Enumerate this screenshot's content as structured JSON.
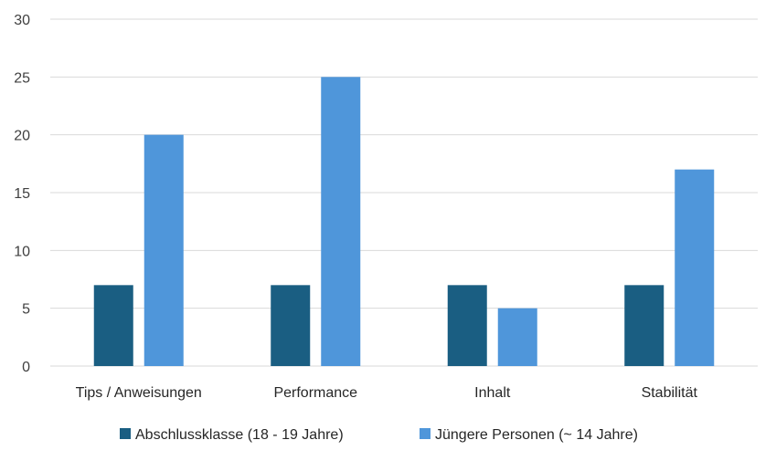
{
  "chart_data": {
    "type": "bar",
    "categories": [
      "Tips / Anweisungen",
      "Performance",
      "Inhalt",
      "Stabilität"
    ],
    "series": [
      {
        "name": "Abschlussklasse (18 - 19 Jahre)",
        "values": [
          7,
          7,
          7,
          7
        ],
        "color": "#1a5e82"
      },
      {
        "name": "Jüngere Personen (~ 14 Jahre)",
        "values": [
          20,
          25,
          5,
          17
        ],
        "color": "#4f96da"
      }
    ],
    "ylim": [
      0,
      30
    ],
    "yticks": [
      "0",
      "5",
      "10",
      "15",
      "20",
      "25",
      "30"
    ],
    "grid": true,
    "legend_position": "bottom",
    "gridline_color": "#d9d9d9"
  }
}
